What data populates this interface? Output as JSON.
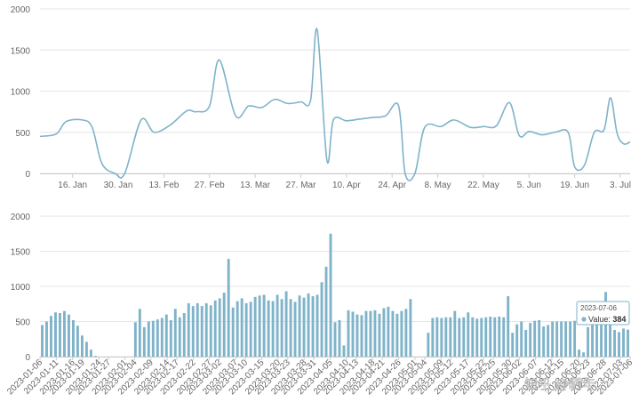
{
  "watermark": "知乎 @晒年",
  "chart_data": [
    {
      "type": "line",
      "color": "#7fb3c9",
      "ylim": [
        0,
        2000
      ],
      "yticks": [
        "0",
        "500",
        "1000",
        "1500",
        "2000"
      ],
      "xticks": [
        "16. Jan",
        "30. Jan",
        "13. Feb",
        "27. Feb",
        "13. Mar",
        "27. Mar",
        "10. Apr",
        "24. Apr",
        "8. May",
        "22. May",
        "5. Jun",
        "19. Jun",
        "3. Jul"
      ],
      "x_range": [
        "2023-01-06",
        "2023-07-06"
      ],
      "x_tick_start": "2023-01-16",
      "x_tick_interval_days": 14,
      "grid": true,
      "series": [
        {
          "x": [
            "2023-01-06",
            "2023-01-11",
            "2023-01-14",
            "2023-01-19",
            "2023-01-22",
            "2023-01-25",
            "2023-01-29",
            "2023-02-01",
            "2023-02-06",
            "2023-02-10",
            "2023-02-15",
            "2023-02-20",
            "2023-02-23",
            "2023-02-27",
            "2023-03-02",
            "2023-03-07",
            "2023-03-11",
            "2023-03-15",
            "2023-03-19",
            "2023-03-23",
            "2023-03-27",
            "2023-03-30",
            "2023-04-01",
            "2023-04-04",
            "2023-04-06",
            "2023-04-10",
            "2023-04-14",
            "2023-04-18",
            "2023-04-22",
            "2023-04-26",
            "2023-04-28",
            "2023-05-01",
            "2023-05-04",
            "2023-05-09",
            "2023-05-13",
            "2023-05-18",
            "2023-05-22",
            "2023-05-26",
            "2023-05-30",
            "2023-06-02",
            "2023-06-05",
            "2023-06-09",
            "2023-06-13",
            "2023-06-17",
            "2023-06-19",
            "2023-06-22",
            "2023-06-25",
            "2023-06-28",
            "2023-06-30",
            "2023-07-02",
            "2023-07-04",
            "2023-07-06"
          ],
          "values": [
            450,
            480,
            630,
            650,
            560,
            120,
            0,
            0,
            650,
            500,
            590,
            760,
            750,
            820,
            1380,
            700,
            820,
            800,
            900,
            850,
            870,
            890,
            1750,
            160,
            650,
            640,
            660,
            680,
            700,
            820,
            0,
            0,
            560,
            570,
            650,
            560,
            570,
            580,
            860,
            460,
            510,
            470,
            500,
            500,
            80,
            100,
            500,
            530,
            920,
            490,
            360,
            384
          ]
        }
      ]
    },
    {
      "type": "bar",
      "color": "#7fb3c9",
      "ylim": [
        0,
        2000
      ],
      "yticks": [
        "0",
        "500",
        "1000",
        "1500",
        "2000"
      ],
      "xticks": [
        "2023-01-06",
        "2023-01-11",
        "2023-01-16",
        "2023-01-19",
        "2023-01-24",
        "2023-01-27",
        "2023-02-01",
        "2023-02-04",
        "2023-02-09",
        "2023-02-14",
        "2023-02-17",
        "2023-02-22",
        "2023-02-27",
        "2023-03-02",
        "2023-03-07",
        "2023-03-10",
        "2023-03-15",
        "2023-03-20",
        "2023-03-23",
        "2023-03-28",
        "2023-03-31",
        "2023-04-05",
        "2023-04-10",
        "2023-04-13",
        "2023-04-18",
        "2023-04-21",
        "2023-04-26",
        "2023-05-01",
        "2023-05-04",
        "2023-05-09",
        "2023-05-12",
        "2023-05-17",
        "2023-05-22",
        "2023-05-25",
        "2023-05-30",
        "2023-06-02",
        "2023-06-07",
        "2023-06-12",
        "2023-06-15",
        "2023-06-20",
        "2023-06-23",
        "2023-06-28",
        "2023-07-03",
        "2023-07-06"
      ],
      "x_range": [
        "2023-01-06",
        "2023-07-06"
      ],
      "grid": true,
      "values": [
        450,
        500,
        580,
        630,
        620,
        650,
        600,
        520,
        440,
        300,
        210,
        100,
        10,
        0,
        0,
        0,
        0,
        0,
        0,
        0,
        0,
        490,
        680,
        420,
        500,
        510,
        530,
        550,
        600,
        520,
        680,
        560,
        620,
        760,
        720,
        760,
        720,
        760,
        730,
        800,
        830,
        910,
        1390,
        700,
        790,
        830,
        760,
        780,
        850,
        870,
        880,
        800,
        790,
        880,
        820,
        930,
        820,
        780,
        870,
        840,
        900,
        860,
        880,
        1060,
        1280,
        1750,
        490,
        520,
        160,
        660,
        640,
        600,
        590,
        650,
        650,
        660,
        610,
        690,
        710,
        650,
        610,
        650,
        680,
        820,
        0,
        0,
        0,
        340,
        550,
        560,
        550,
        560,
        560,
        650,
        550,
        560,
        630,
        560,
        540,
        550,
        560,
        570,
        560,
        570,
        560,
        860,
        340,
        460,
        500,
        380,
        480,
        510,
        520,
        430,
        450,
        500,
        500,
        500,
        500,
        500,
        510,
        100,
        60,
        420,
        500,
        600,
        700,
        920,
        500,
        380,
        350,
        400,
        384
      ],
      "tooltip": {
        "date": "2023-07-06",
        "label": "Value:",
        "value": "384"
      }
    }
  ]
}
